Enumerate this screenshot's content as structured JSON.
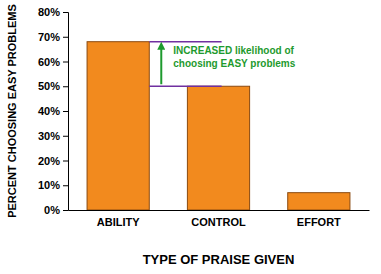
{
  "chart_data": {
    "type": "bar",
    "ylabel": "PERCENT CHOOSING EASY PROBLEMS",
    "xlabel": "TYPE OF PRAISE GIVEN",
    "categories": [
      "ABILITY",
      "CONTROL",
      "EFFORT"
    ],
    "values": [
      68,
      50,
      7
    ],
    "color": "#f28a1e",
    "ylim": [
      0,
      80
    ],
    "yticks": [
      {
        "value": 0,
        "label": "0%"
      },
      {
        "value": 10,
        "label": "10%"
      },
      {
        "value": 20,
        "label": "20%"
      },
      {
        "value": 30,
        "label": "30%"
      },
      {
        "value": 40,
        "label": "40%"
      },
      {
        "value": 50,
        "label": "50%"
      },
      {
        "value": 60,
        "label": "60%"
      },
      {
        "value": 70,
        "label": "70%"
      },
      {
        "value": 80,
        "label": "80%"
      }
    ],
    "grid": false,
    "annotations": [
      {
        "text": [
          "INCREASED likelihood of",
          "choosing EASY problems"
        ]
      }
    ]
  }
}
